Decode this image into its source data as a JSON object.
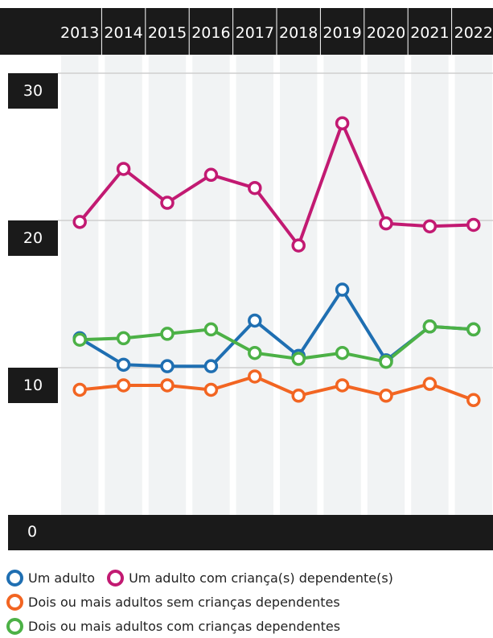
{
  "chart_data": {
    "type": "line",
    "x": [
      "2013",
      "2014",
      "2015",
      "2016",
      "2017",
      "2018",
      "2019",
      "2020",
      "2021",
      "2022"
    ],
    "ylim": [
      0,
      30
    ],
    "yticks": [
      "0",
      "10",
      "20",
      "30"
    ],
    "grid": true,
    "legend_position": "bottom",
    "series": [
      {
        "name": "Um adulto",
        "color": "#1f6fb2",
        "values": [
          12.0,
          10.2,
          10.1,
          10.1,
          13.2,
          10.8,
          15.3,
          10.5,
          12.8,
          12.6
        ]
      },
      {
        "name": "Um adulto com criança(s) dependente(s)",
        "color": "#c21a72",
        "values": [
          19.9,
          23.5,
          21.2,
          23.1,
          22.2,
          18.3,
          26.6,
          19.8,
          19.6,
          19.7
        ]
      },
      {
        "name": "Dois ou mais adultos sem crianças dependentes",
        "color": "#f26522",
        "values": [
          8.5,
          8.8,
          8.8,
          8.5,
          9.4,
          8.1,
          8.8,
          8.1,
          8.9,
          7.8
        ]
      },
      {
        "name": "Dois ou mais adultos com crianças dependentes",
        "color": "#4cb146",
        "values": [
          11.9,
          12.0,
          12.3,
          12.6,
          11.0,
          10.6,
          11.0,
          10.4,
          12.8,
          12.6
        ]
      }
    ]
  }
}
